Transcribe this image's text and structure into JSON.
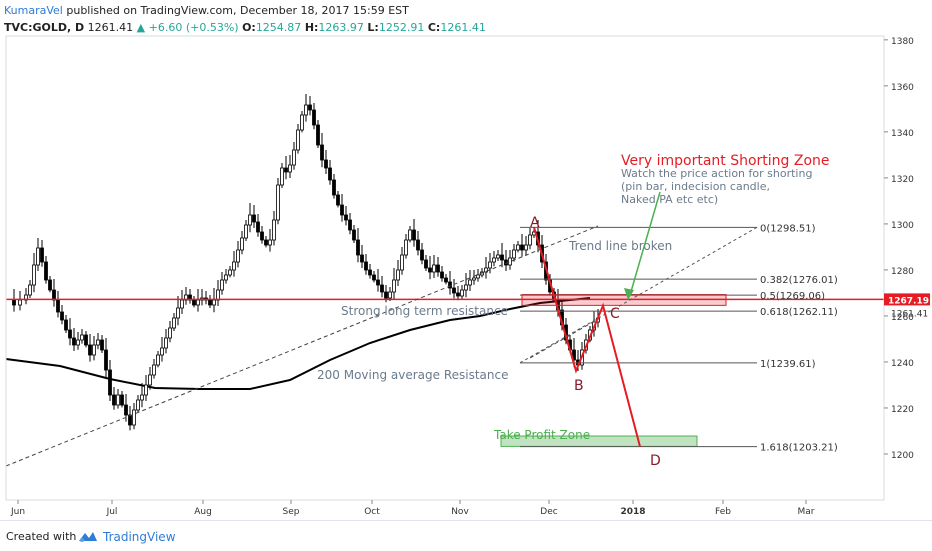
{
  "header": {
    "author": "KumaraVel",
    "published": "published on TradingView.com, December 18, 2017 15:59 EST",
    "symbol": "TVC:GOLD, D",
    "last": "1261.41",
    "change": "▲ +6.60 (+0.53%)",
    "o_label": "O:",
    "o_value": "1254.87",
    "h_label": "H:",
    "h_value": "1263.97",
    "l_label": "L:",
    "l_value": "1252.91",
    "c_label": "C:",
    "c_value": "1261.41"
  },
  "footer": {
    "created_with": "Created with",
    "brand": "TradingView"
  },
  "colors": {
    "up": "#26a69a",
    "resistance": "#e51c23",
    "ma": "#000000",
    "fib": "#555555",
    "takeprofit": "#4caf50",
    "annotation_red": "#d32f2f",
    "annotation_green": "#4caf50"
  },
  "chart_data": {
    "type": "candlestick",
    "x_ticks": [
      "Jun",
      "Jul",
      "Aug",
      "Sep",
      "Oct",
      "Nov",
      "Dec",
      "2018",
      "Feb",
      "Mar"
    ],
    "y_ticks": [
      1200,
      1220,
      1240,
      1260,
      1280,
      1300,
      1320,
      1340,
      1360,
      1380
    ],
    "ylim": [
      1180,
      1385
    ],
    "price_tags": [
      {
        "value": 1267.19,
        "label": "1267.19",
        "style": "red"
      },
      {
        "value": 1261.41,
        "label": "1261.41",
        "style": "plain"
      }
    ],
    "resistance_line": 1267.19,
    "fib_levels": [
      {
        "ratio": "0",
        "value": 1298.51,
        "label": "0(1298.51)"
      },
      {
        "ratio": "0.382",
        "value": 1276.01,
        "label": "0.382(1276.01)"
      },
      {
        "ratio": "0.5",
        "value": 1269.06,
        "label": "0.5(1269.06)"
      },
      {
        "ratio": "0.618",
        "value": 1262.11,
        "label": "0.618(1262.11)"
      },
      {
        "ratio": "1",
        "value": 1239.61,
        "label": "1(1239.61)"
      },
      {
        "ratio": "1.618",
        "value": 1203.21,
        "label": "1.618(1203.21)"
      }
    ],
    "points": [
      {
        "label": "A",
        "value": 1298.51
      },
      {
        "label": "B",
        "value": 1236.2
      },
      {
        "label": "C",
        "value": 1264.5
      },
      {
        "label": "D",
        "value": 1203.21
      }
    ],
    "zones": [
      {
        "name": "shorting",
        "low": 1264.6,
        "high": 1269.3
      },
      {
        "name": "take-profit",
        "low": 1203.3,
        "high": 1207.8
      }
    ],
    "annotations": {
      "title": "Very important Shorting Zone",
      "note": [
        "Watch the price action for shorting",
        "(pin bar, indecision candle,",
        "Naked PA etc etc)"
      ],
      "trend_broken": "Trend line broken",
      "resistance": "Strong long term resistance",
      "ma": "200 Moving average Resistance",
      "take_profit": "Take Profit Zone"
    }
  }
}
